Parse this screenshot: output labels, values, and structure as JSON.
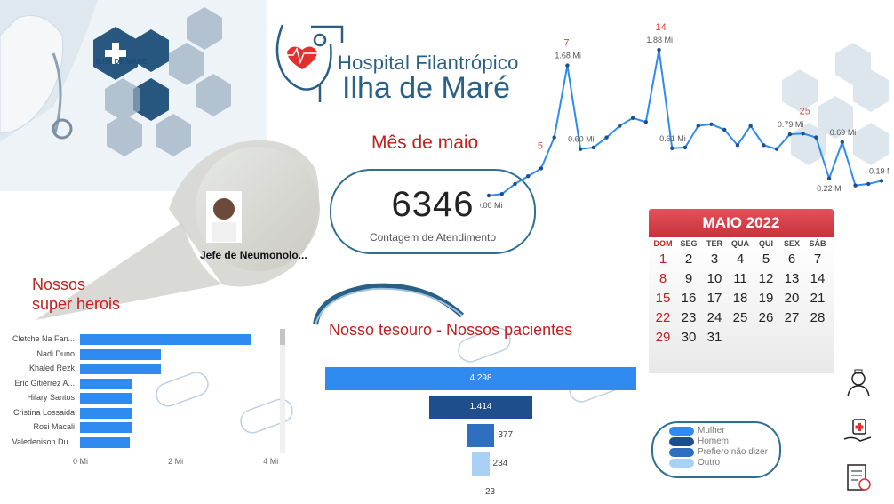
{
  "logo": {
    "line1": "Hospital Filantrópico",
    "line2": "Ilha de Maré",
    "badge_text": "ILHA DE MARÉ"
  },
  "month_title": "Mês de maio",
  "kpi": {
    "value": "6346",
    "label": "Contagem de Atendimento"
  },
  "heroes": {
    "title_line1": "Nossos",
    "title_line2": "super herois",
    "featured_name": "Jefe de Neumonolo...",
    "chart_data": {
      "type": "bar",
      "orientation": "horizontal",
      "categories": [
        "Cletche Na Fan...",
        "Nadi Duno",
        "Khaled Rezk",
        "Eric Gitiérrez A...",
        "Hilary Santos",
        "Cristina Lossaida",
        "Rosi Macali",
        "Valedenison Du..."
      ],
      "values": [
        3.6,
        1.7,
        1.7,
        1.1,
        1.1,
        1.1,
        1.1,
        1.05
      ],
      "unit": "Mi",
      "xlim": [
        0,
        4.2
      ],
      "xticks": [
        "0 Mi",
        "2 Mi",
        "4 Mi"
      ]
    }
  },
  "treasure": {
    "title": "Nosso tesouro - Nossos pacientes",
    "chart_data": {
      "type": "funnel",
      "categories": [
        "Mulher",
        "Homem",
        "Prefiero não dizer",
        "Outro",
        ""
      ],
      "values": [
        4298,
        1414,
        377,
        234,
        23
      ],
      "labels": [
        "4.298",
        "1.414",
        "377",
        "234",
        "23"
      ],
      "colors": [
        "#2f8bef",
        "#1e4f8c",
        "#2f6fc0",
        "#a9d0f5",
        "#ffffff"
      ]
    },
    "legend": [
      {
        "label": "Mulher",
        "color": "#2f8bef"
      },
      {
        "label": "Homem",
        "color": "#1e4f8c"
      },
      {
        "label": "Prefiero não dizer",
        "color": "#2f6fc0"
      },
      {
        "label": "Outro",
        "color": "#a9d0f5"
      }
    ]
  },
  "daily_chart": {
    "chart_data": {
      "type": "line",
      "x": [
        1,
        2,
        3,
        4,
        5,
        6,
        7,
        8,
        9,
        10,
        11,
        12,
        13,
        14,
        15,
        16,
        17,
        18,
        19,
        20,
        21,
        22,
        23,
        24,
        25,
        26,
        27,
        28,
        29,
        30,
        31
      ],
      "values": [
        0.0,
        0.02,
        0.15,
        0.25,
        0.35,
        0.75,
        1.68,
        0.6,
        0.62,
        0.75,
        0.9,
        1.0,
        0.95,
        1.88,
        0.61,
        0.62,
        0.9,
        0.92,
        0.85,
        0.65,
        0.9,
        0.65,
        0.6,
        0.79,
        0.8,
        0.75,
        0.22,
        0.69,
        0.13,
        0.15,
        0.19
      ],
      "unit": "Mi",
      "point_labels": [
        {
          "day": 1,
          "text": "0.00 Mi"
        },
        {
          "day": 7,
          "text": "1.68 Mi"
        },
        {
          "day": 8,
          "text": "0.60 Mi"
        },
        {
          "day": 14,
          "text": "1.88 Mi"
        },
        {
          "day": 15,
          "text": "0.61 Mi"
        },
        {
          "day": 24,
          "text": "0.79 Mi"
        },
        {
          "day": 27,
          "text": "0.22 Mi"
        },
        {
          "day": 28,
          "text": "0.69 Mi"
        },
        {
          "day": 31,
          "text": "0.19 Mi"
        }
      ],
      "highlights": [
        {
          "day": 5,
          "text": "5"
        },
        {
          "day": 7,
          "text": "7"
        },
        {
          "day": 14,
          "text": "14"
        },
        {
          "day": 25,
          "text": "25"
        }
      ]
    }
  },
  "calendar": {
    "title": "MAIO 2022",
    "dow": [
      "DOM",
      "SEG",
      "TER",
      "QUA",
      "QUI",
      "SEX",
      "SÁB"
    ],
    "weeks": [
      [
        "1",
        "2",
        "3",
        "4",
        "5",
        "6",
        "7"
      ],
      [
        "8",
        "9",
        "10",
        "11",
        "12",
        "13",
        "14"
      ],
      [
        "15",
        "16",
        "17",
        "18",
        "19",
        "20",
        "21"
      ],
      [
        "22",
        "23",
        "24",
        "25",
        "26",
        "27",
        "28"
      ],
      [
        "29",
        "30",
        "31",
        "",
        "",
        "",
        ""
      ]
    ]
  },
  "colors": {
    "accent_blue": "#2f8bef",
    "brand_navy": "#2a5f86",
    "title_red": "#c0201f",
    "highlight_red": "#e0413a"
  }
}
